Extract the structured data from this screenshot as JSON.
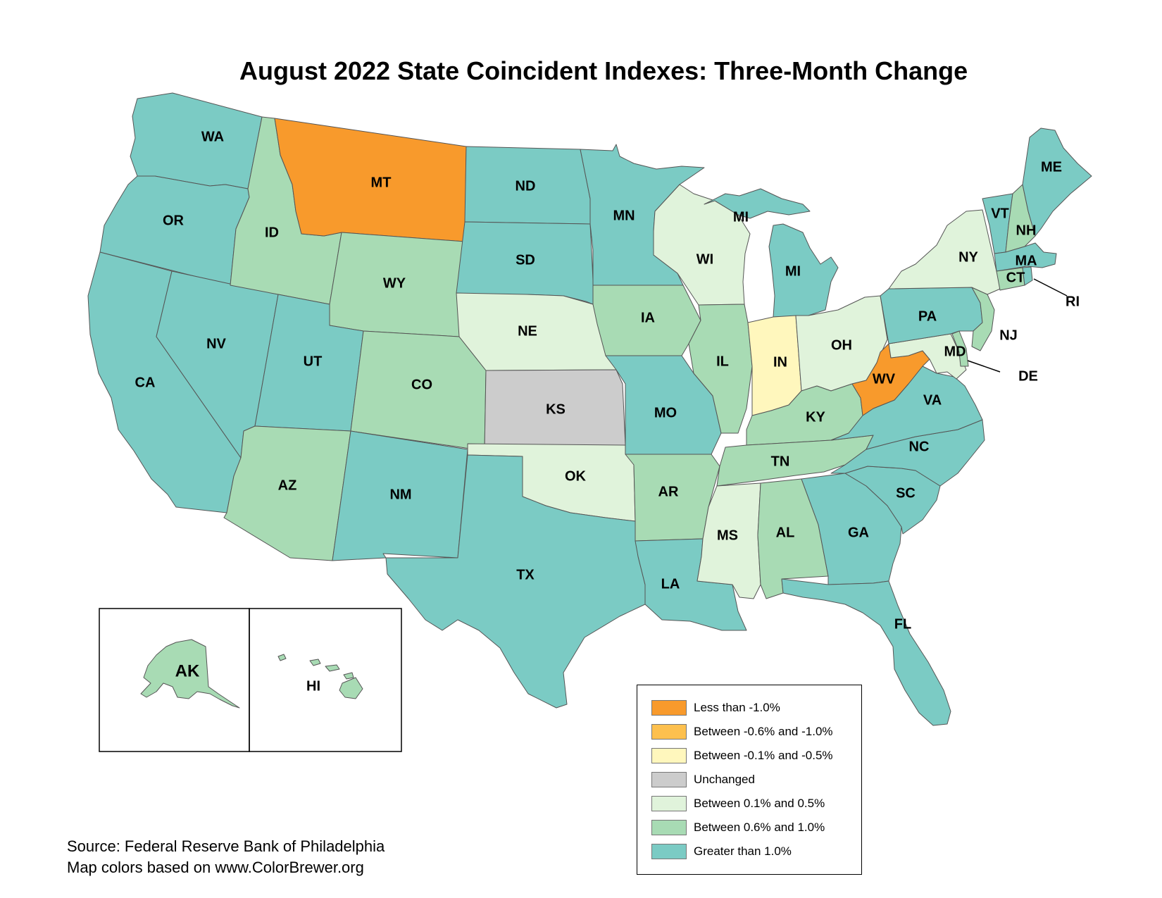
{
  "title": "August 2022 State Coincident Indexes: Three-Month Change",
  "categories": {
    "lt_neg1": {
      "label": "Less than -1.0%",
      "color": "#f89a2c"
    },
    "neg06_neg1": {
      "label": "Between -0.6% and -1.0%",
      "color": "#fdc04e"
    },
    "neg01_neg05": {
      "label": "Between -0.1% and -0.5%",
      "color": "#fff7bd"
    },
    "unchanged": {
      "label": "Unchanged",
      "color": "#cccccc"
    },
    "p01_p05": {
      "label": "Between 0.1% and 0.5%",
      "color": "#e0f3db"
    },
    "p06_p1": {
      "label": "Between 0.6% and 1.0%",
      "color": "#a8dbb4"
    },
    "gt1": {
      "label": "Greater than 1.0%",
      "color": "#7bcbc4"
    }
  },
  "legend_order": [
    "lt_neg1",
    "neg06_neg1",
    "neg01_neg05",
    "unchanged",
    "p01_p05",
    "p06_p1",
    "gt1"
  ],
  "states": {
    "WA": "gt1",
    "OR": "gt1",
    "CA": "gt1",
    "NV": "gt1",
    "ID": "p06_p1",
    "MT": "lt_neg1",
    "WY": "p06_p1",
    "UT": "gt1",
    "AZ": "p06_p1",
    "CO": "p06_p1",
    "NM": "gt1",
    "ND": "gt1",
    "SD": "gt1",
    "NE": "p01_p05",
    "KS": "unchanged",
    "OK": "p01_p05",
    "TX": "gt1",
    "MN": "gt1",
    "IA": "p06_p1",
    "MO": "gt1",
    "AR": "p06_p1",
    "LA": "gt1",
    "WI": "p01_p05",
    "IL": "p06_p1",
    "MI": "gt1",
    "IN": "neg01_neg05",
    "OH": "p01_p05",
    "KY": "p06_p1",
    "TN": "p06_p1",
    "MS": "p01_p05",
    "AL": "p06_p1",
    "GA": "gt1",
    "FL": "gt1",
    "SC": "gt1",
    "NC": "gt1",
    "VA": "gt1",
    "WV": "lt_neg1",
    "MD": "p01_p05",
    "DE": "p06_p1",
    "PA": "gt1",
    "NJ": "p06_p1",
    "NY": "p01_p05",
    "CT": "p06_p1",
    "RI": "gt1",
    "MA": "gt1",
    "VT": "gt1",
    "NH": "p06_p1",
    "ME": "gt1",
    "AK": "p06_p1",
    "HI": "p06_p1"
  },
  "state_labels": {
    "WA": "WA",
    "OR": "OR",
    "CA": "CA",
    "NV": "NV",
    "ID": "ID",
    "MT": "MT",
    "WY": "WY",
    "UT": "UT",
    "AZ": "AZ",
    "CO": "CO",
    "NM": "NM",
    "ND": "ND",
    "SD": "SD",
    "NE": "NE",
    "KS": "KS",
    "OK": "OK",
    "TX": "TX",
    "MN": "MN",
    "IA": "IA",
    "MO": "MO",
    "AR": "AR",
    "LA": "LA",
    "WI": "WI",
    "IL": "IL",
    "MI": "MI",
    "MI_UP": "MI",
    "IN": "IN",
    "OH": "OH",
    "KY": "KY",
    "TN": "TN",
    "MS": "MS",
    "AL": "AL",
    "GA": "GA",
    "FL": "FL",
    "SC": "SC",
    "NC": "NC",
    "VA": "VA",
    "WV": "WV",
    "MD": "MD",
    "DE": "DE",
    "PA": "PA",
    "NJ": "NJ",
    "NY": "NY",
    "CT": "CT",
    "RI": "RI",
    "MA": "MA",
    "VT": "VT",
    "NH": "NH",
    "ME": "ME",
    "AK": "AK",
    "HI": "HI"
  },
  "source": {
    "line1": "Source: Federal Reserve Bank of Philadelphia",
    "line2": "Map colors based on www.ColorBrewer.org"
  }
}
